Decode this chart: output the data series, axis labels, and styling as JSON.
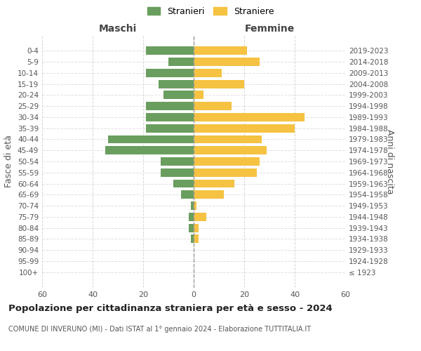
{
  "age_groups": [
    "100+",
    "95-99",
    "90-94",
    "85-89",
    "80-84",
    "75-79",
    "70-74",
    "65-69",
    "60-64",
    "55-59",
    "50-54",
    "45-49",
    "40-44",
    "35-39",
    "30-34",
    "25-29",
    "20-24",
    "15-19",
    "10-14",
    "5-9",
    "0-4"
  ],
  "birth_years": [
    "≤ 1923",
    "1924-1928",
    "1929-1933",
    "1934-1938",
    "1939-1943",
    "1944-1948",
    "1949-1953",
    "1954-1958",
    "1959-1963",
    "1964-1968",
    "1969-1973",
    "1974-1978",
    "1979-1983",
    "1984-1988",
    "1989-1993",
    "1994-1998",
    "1999-2003",
    "2004-2008",
    "2009-2013",
    "2014-2018",
    "2019-2023"
  ],
  "males": [
    0,
    0,
    0,
    1,
    2,
    2,
    1,
    5,
    8,
    13,
    13,
    35,
    34,
    19,
    19,
    19,
    12,
    14,
    19,
    10,
    19
  ],
  "females": [
    0,
    0,
    0,
    2,
    2,
    5,
    1,
    12,
    16,
    25,
    26,
    29,
    27,
    40,
    44,
    15,
    4,
    20,
    11,
    26,
    21
  ],
  "male_color": "#6a9e5e",
  "female_color": "#f5c242",
  "background_color": "#ffffff",
  "grid_color": "#cccccc",
  "title": "Popolazione per cittadinanza straniera per età e sesso - 2024",
  "subtitle": "COMUNE DI INVERUNO (MI) - Dati ISTAT al 1° gennaio 2024 - Elaborazione TUTTITALIA.IT",
  "xlabel_left": "Maschi",
  "xlabel_right": "Femmine",
  "ylabel_left": "Fasce di età",
  "ylabel_right": "Anni di nascita",
  "legend_males": "Stranieri",
  "legend_females": "Straniere",
  "xlim": 60
}
